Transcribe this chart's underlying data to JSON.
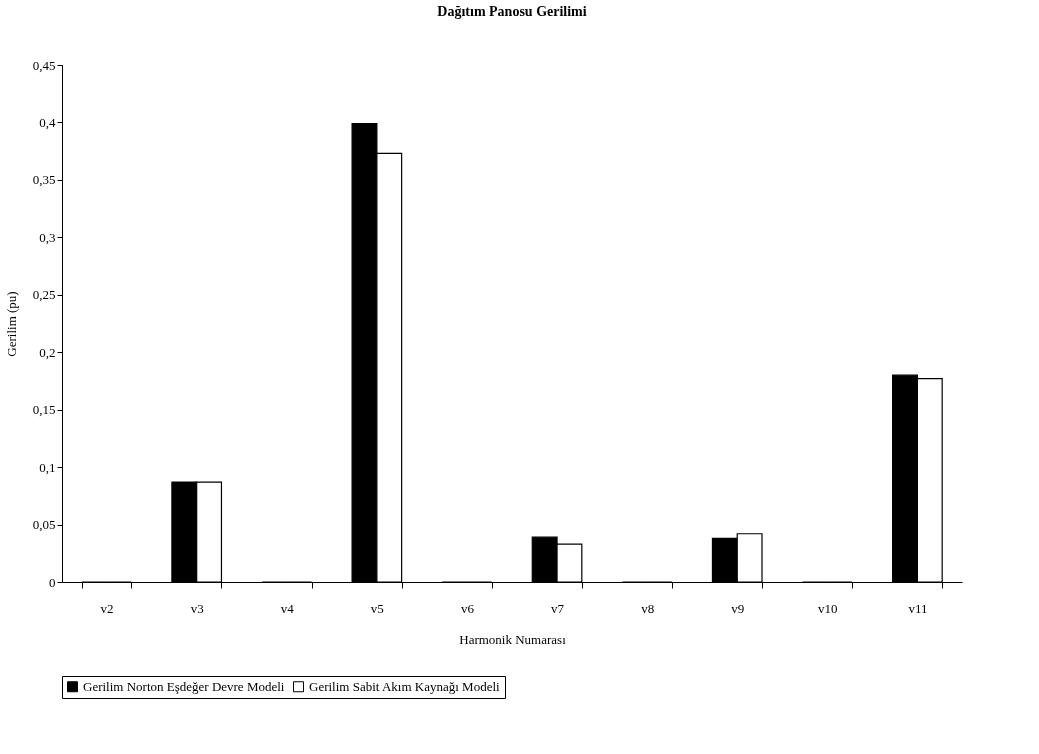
{
  "chart_data": {
    "type": "bar",
    "title": "Dağıtım Panosu Gerilimi",
    "xlabel": "Harmonik Numarası",
    "ylabel": "Gerilim (pu)",
    "categories": [
      "v2",
      "v3",
      "v4",
      "v5",
      "v6",
      "v7",
      "v8",
      "v9",
      "v10",
      "v11"
    ],
    "series": [
      {
        "name": "Gerilim Norton Eşdeğer Devre Modeli",
        "color": "#000000",
        "values": [
          0,
          0.087,
          0,
          0.399,
          0,
          0.039,
          0,
          0.038,
          0,
          0.18
        ]
      },
      {
        "name": "Gerilim Sabit Akım Kaynağı Modeli",
        "color": "#ffffff",
        "values": [
          0,
          0.087,
          0,
          0.373,
          0,
          0.033,
          0,
          0.042,
          0,
          0.177
        ]
      }
    ],
    "ylim": [
      0,
      0.45
    ],
    "yticks": [
      0,
      {
        "value": 0.05,
        "label": "0,05"
      },
      {
        "value": 0.1,
        "label": "0,1"
      },
      {
        "value": 0.15,
        "label": "0,15"
      },
      {
        "value": 0.2,
        "label": "0,2"
      },
      {
        "value": 0.25,
        "label": "0,25"
      },
      {
        "value": 0.3,
        "label": "0,3"
      },
      {
        "value": 0.35,
        "label": "0,35"
      },
      {
        "value": 0.4,
        "label": "0,4"
      },
      {
        "value": 0.45,
        "label": "0,45"
      }
    ],
    "grid": false,
    "legend": "bottom"
  }
}
